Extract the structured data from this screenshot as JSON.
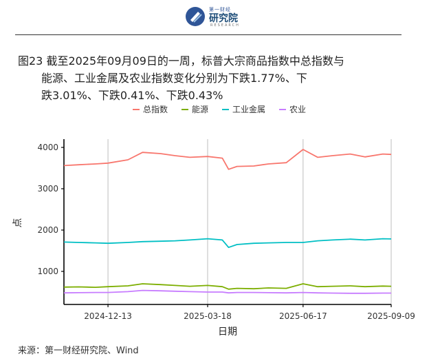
{
  "header": {
    "logo_top": "第一财经",
    "logo_main": "研究院",
    "logo_sub": "RESEARCH"
  },
  "figure": {
    "title_line1": "图23 截至2025年09月09日的一周，标普大宗商品指数中总指数与",
    "title_line2": "能源、工业金属及农业指数变化分别为下跌1.77%、下",
    "title_line3": "跌3.01%、下跌0.41%、下跌0.43%"
  },
  "source": "来源：第一财经研究院、Wind",
  "chart_data": {
    "type": "line",
    "xlabel": "日期",
    "ylabel": "点",
    "ylim": [
      200,
      4150
    ],
    "xlim": [
      "2024-11-01",
      "2025-09-09"
    ],
    "yticks": [
      1000,
      2000,
      3000,
      4000
    ],
    "xticks": [
      "2024-12-13",
      "2025-03-18",
      "2025-06-17",
      "2025-09-09"
    ],
    "grid": "vertical lines at x ticks",
    "legend_position": "top",
    "x": [
      "2024-11-01",
      "2024-11-15",
      "2024-12-01",
      "2024-12-13",
      "2025-01-01",
      "2025-01-15",
      "2025-02-01",
      "2025-02-15",
      "2025-03-01",
      "2025-03-18",
      "2025-04-01",
      "2025-04-07",
      "2025-04-15",
      "2025-05-01",
      "2025-05-15",
      "2025-06-01",
      "2025-06-17",
      "2025-07-01",
      "2025-07-15",
      "2025-08-01",
      "2025-08-15",
      "2025-09-01",
      "2025-09-09"
    ],
    "series": [
      {
        "name": "总指数",
        "color": "#f8766d",
        "values": [
          3560,
          3580,
          3600,
          3620,
          3700,
          3880,
          3850,
          3800,
          3760,
          3780,
          3740,
          3470,
          3540,
          3550,
          3600,
          3630,
          3950,
          3760,
          3800,
          3840,
          3770,
          3840,
          3830
        ]
      },
      {
        "name": "能源",
        "color": "#7cae00",
        "values": [
          620,
          625,
          615,
          630,
          650,
          700,
          680,
          660,
          640,
          660,
          630,
          570,
          590,
          580,
          600,
          590,
          700,
          630,
          640,
          650,
          630,
          645,
          640
        ]
      },
      {
        "name": "工业金属",
        "color": "#00bfc4",
        "values": [
          1710,
          1700,
          1690,
          1680,
          1700,
          1720,
          1730,
          1740,
          1760,
          1790,
          1760,
          1580,
          1650,
          1680,
          1690,
          1700,
          1700,
          1740,
          1760,
          1780,
          1760,
          1790,
          1785
        ]
      },
      {
        "name": "农业",
        "color": "#c77cff",
        "values": [
          480,
          485,
          490,
          490,
          510,
          540,
          530,
          520,
          510,
          500,
          500,
          480,
          490,
          490,
          485,
          480,
          490,
          480,
          475,
          470,
          470,
          475,
          475
        ]
      }
    ]
  }
}
